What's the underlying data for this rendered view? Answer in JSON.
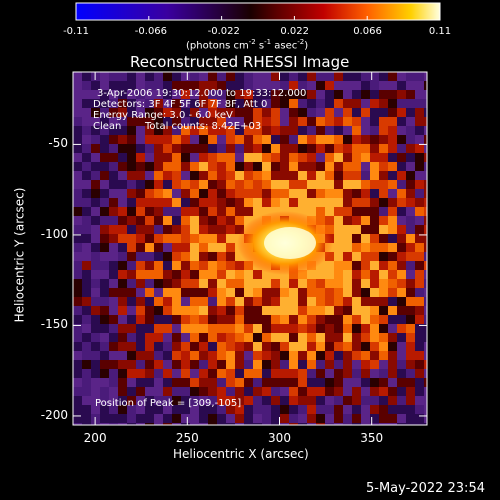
{
  "colorbar": {
    "tick_labels": [
      "-0.11",
      "-0.066",
      "-0.022",
      "0.022",
      "0.066",
      "0.11"
    ],
    "tick_values": [
      -0.11,
      -0.066,
      -0.022,
      0.022,
      0.066,
      0.11
    ],
    "range": [
      -0.11,
      0.11
    ],
    "units_prefix": "(photons cm",
    "units_exp1": "-2",
    "units_mid": " s",
    "units_exp2": "-1",
    "units_mid2": " asec",
    "units_exp3": "-2",
    "units_suffix": ")"
  },
  "plot": {
    "title": "Reconstructed RHESSI Image",
    "xlabel": "Heliocentric X (arcsec)",
    "ylabel": "Heliocentric Y (arcsec)",
    "xlim": [
      188,
      380
    ],
    "ylim": [
      -205,
      -10
    ],
    "x_tick_labels": [
      "200",
      "250",
      "300",
      "350"
    ],
    "x_tick_values": [
      200,
      250,
      300,
      350
    ],
    "y_tick_labels": [
      "-50",
      "-100",
      "-150",
      "-200"
    ],
    "y_tick_values": [
      -50,
      -100,
      -150,
      -200
    ],
    "peak_x": 309,
    "peak_y": -105
  },
  "info": {
    "time_range": "3-Apr-2006 19:30:12.000 to 19:33:12.000",
    "detectors": "Detectors: 3F 4F 5F 6F 7F 8F, Att 0",
    "energy": "Energy Range: 3.0 - 6.0 keV",
    "method": "Clean",
    "counts": "Total counts: 8.42E+03",
    "peak": "Position of Peak = [309,-105]"
  },
  "footer": {
    "date": "5-May-2022 23:54"
  }
}
